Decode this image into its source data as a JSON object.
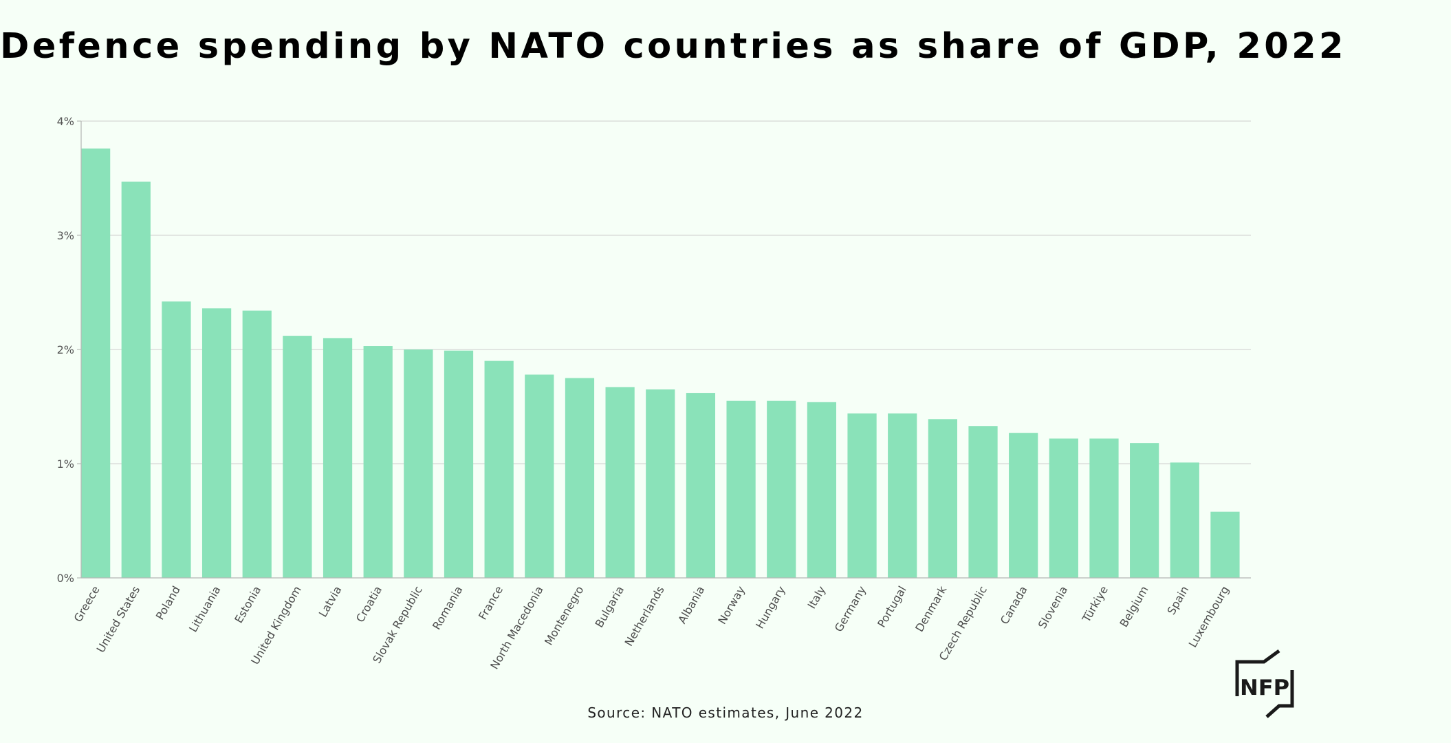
{
  "chart_data": {
    "type": "bar",
    "title": "Defence spending by NATO countries as share of GDP, 2022",
    "xlabel": "",
    "ylabel": "",
    "unit": "%",
    "ylim": [
      0,
      4
    ],
    "yticks": [
      0,
      1,
      2,
      3,
      4
    ],
    "ytick_labels": [
      "0%",
      "1%",
      "2%",
      "3%",
      "4%"
    ],
    "grid": true,
    "bar_color": "#8ae2b9",
    "categories": [
      "Greece",
      "United States",
      "Poland",
      "Lithuania",
      "Estonia",
      "United Kingdom",
      "Latvia",
      "Croatia",
      "Slovak Republic",
      "Romania",
      "France",
      "North Macedonia",
      "Montenegro",
      "Bulgaria",
      "Netherlands",
      "Albania",
      "Norway",
      "Hungary",
      "Italy",
      "Germany",
      "Portugal",
      "Denmark",
      "Czech Republic",
      "Canada",
      "Slovenia",
      "Türkiye",
      "Belgium",
      "Spain",
      "Luxembourg"
    ],
    "values": [
      3.76,
      3.47,
      2.42,
      2.36,
      2.34,
      2.12,
      2.1,
      2.03,
      2.0,
      1.99,
      1.9,
      1.78,
      1.75,
      1.67,
      1.65,
      1.62,
      1.55,
      1.55,
      1.54,
      1.44,
      1.44,
      1.39,
      1.33,
      1.27,
      1.22,
      1.22,
      1.18,
      1.01,
      0.58
    ]
  },
  "footer": {
    "source": "Source: NATO estimates, June 2022"
  },
  "logo": {
    "text": "NFP",
    "color": "#1a1a1a"
  }
}
